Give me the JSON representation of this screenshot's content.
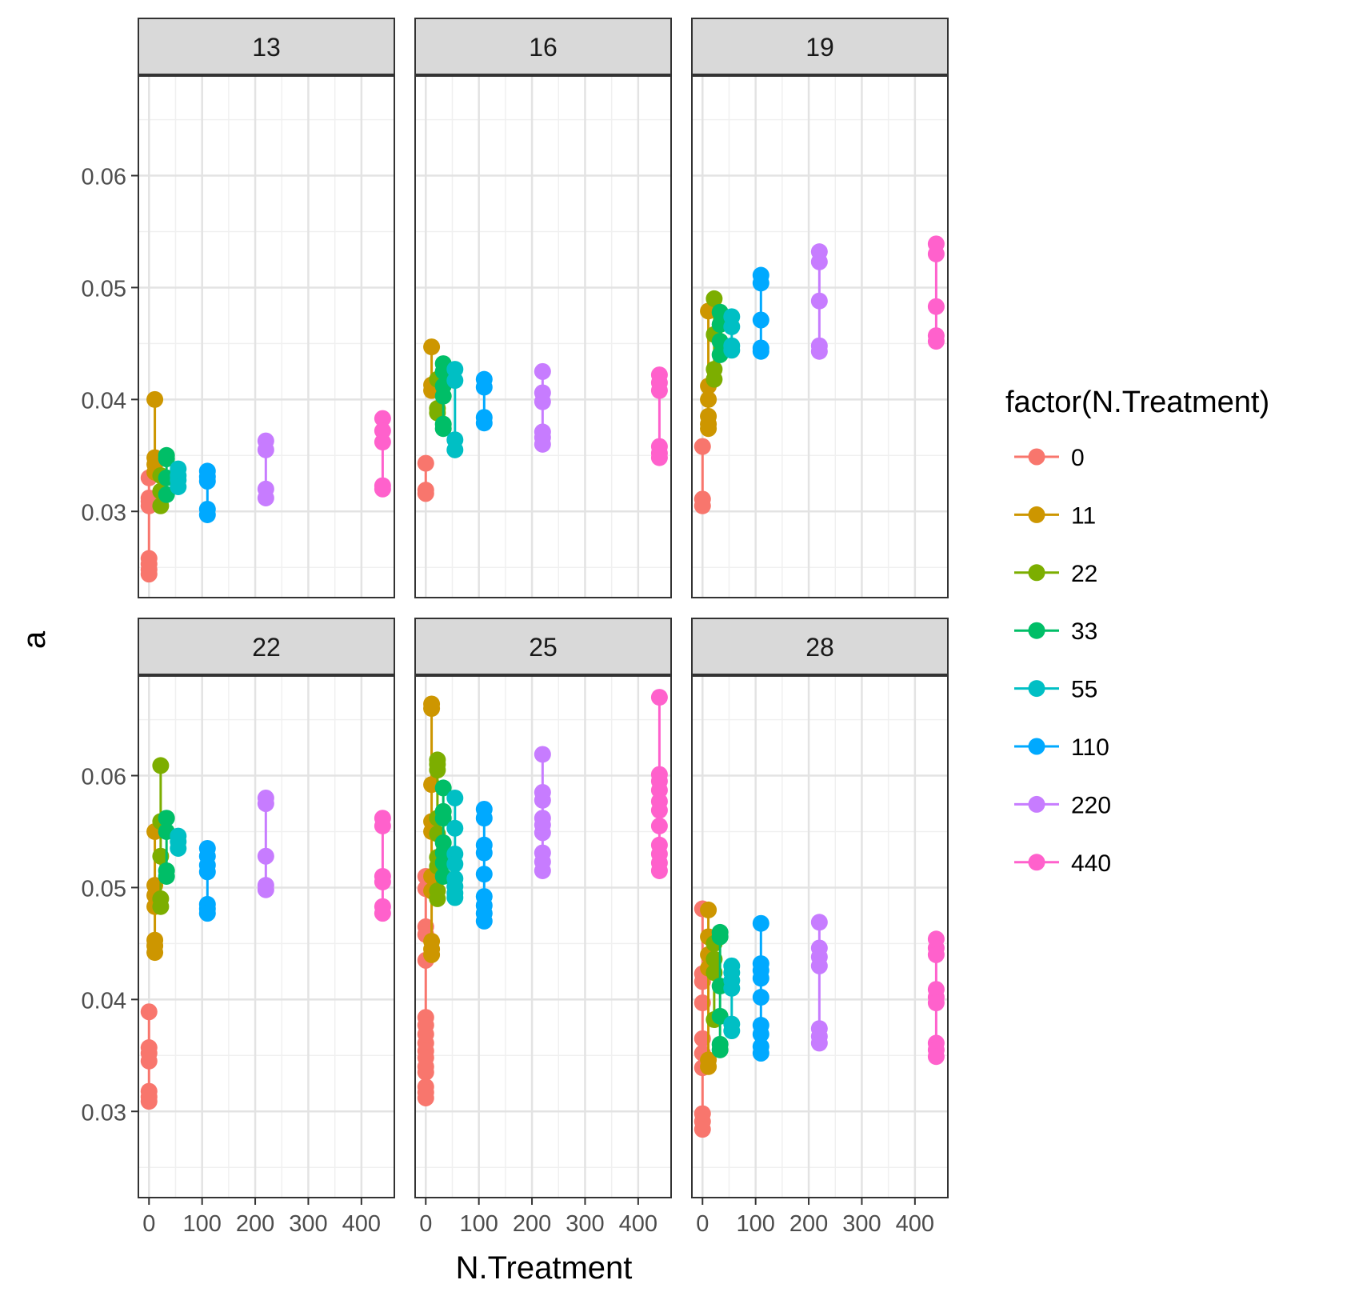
{
  "chart_data": {
    "type": "scatter",
    "xlabel": "N.Treatment",
    "ylabel": "a",
    "xlim": [
      -20,
      462
    ],
    "ylim": [
      0.0223,
      0.0689
    ],
    "x_ticks": [
      0,
      100,
      200,
      300,
      400
    ],
    "y_ticks": [
      0.03,
      0.04,
      0.05,
      0.06
    ],
    "y_tick_labels": [
      "0.03",
      "0.04",
      "0.05",
      "0.06"
    ],
    "grid": true,
    "legend": {
      "title": "factor(N.Treatment)",
      "position": "right",
      "entries": [
        "0",
        "11",
        "22",
        "33",
        "55",
        "110",
        "220",
        "440"
      ]
    },
    "series_colors": {
      "0": "#F8766D",
      "11": "#CD9600",
      "22": "#7CAE00",
      "33": "#00BE67",
      "55": "#00BFC4",
      "110": "#00A9FF",
      "220": "#C77CFF",
      "440": "#FF61CC"
    },
    "panels": [
      {
        "label": "13",
        "series": [
          {
            "name": "0",
            "x": 0,
            "values": [
              0.033,
              0.0312,
              0.0309,
              0.0305,
              0.0258,
              0.0253,
              0.0248,
              0.0244
            ]
          },
          {
            "name": "11",
            "x": 11,
            "values": [
              0.04,
              0.0348,
              0.0342,
              0.0335
            ]
          },
          {
            "name": "22",
            "x": 22,
            "values": [
              0.0332,
              0.0318,
              0.0305
            ]
          },
          {
            "name": "33",
            "x": 33,
            "values": [
              0.035,
              0.0347,
              0.033,
              0.0315
            ]
          },
          {
            "name": "55",
            "x": 55,
            "values": [
              0.0338,
              0.0332,
              0.0328,
              0.0322
            ]
          },
          {
            "name": "110",
            "x": 110,
            "values": [
              0.0336,
              0.0331,
              0.0327,
              0.0302,
              0.0297
            ]
          },
          {
            "name": "220",
            "x": 220,
            "values": [
              0.0363,
              0.0355,
              0.032,
              0.0312
            ]
          },
          {
            "name": "440",
            "x": 440,
            "values": [
              0.0383,
              0.0372,
              0.0362,
              0.0323,
              0.032
            ]
          }
        ]
      },
      {
        "label": "16",
        "series": [
          {
            "name": "0",
            "x": 0,
            "values": [
              0.0343,
              0.0319,
              0.0316
            ]
          },
          {
            "name": "11",
            "x": 11,
            "values": [
              0.0447,
              0.0413,
              0.0408
            ]
          },
          {
            "name": "22",
            "x": 22,
            "values": [
              0.0418,
              0.0392,
              0.0388
            ]
          },
          {
            "name": "33",
            "x": 33,
            "values": [
              0.0432,
              0.0425,
              0.0412,
              0.0403,
              0.0378,
              0.0374
            ]
          },
          {
            "name": "55",
            "x": 55,
            "values": [
              0.0427,
              0.0417,
              0.0364,
              0.0355
            ]
          },
          {
            "name": "110",
            "x": 110,
            "values": [
              0.0418,
              0.0411,
              0.0384,
              0.0379
            ]
          },
          {
            "name": "220",
            "x": 220,
            "values": [
              0.0425,
              0.0406,
              0.0398,
              0.0371,
              0.0366,
              0.036
            ]
          },
          {
            "name": "440",
            "x": 440,
            "values": [
              0.0422,
              0.0415,
              0.0408,
              0.0358,
              0.0352,
              0.0348
            ]
          }
        ]
      },
      {
        "label": "19",
        "series": [
          {
            "name": "0",
            "x": 0,
            "values": [
              0.0358,
              0.0311,
              0.0305
            ]
          },
          {
            "name": "11",
            "x": 11,
            "values": [
              0.0479,
              0.0412,
              0.04,
              0.0385,
              0.0378,
              0.0374
            ]
          },
          {
            "name": "22",
            "x": 22,
            "values": [
              0.049,
              0.0458,
              0.0427,
              0.0418
            ]
          },
          {
            "name": "33",
            "x": 33,
            "values": [
              0.0478,
              0.0467,
              0.0452,
              0.044
            ]
          },
          {
            "name": "55",
            "x": 55,
            "values": [
              0.0474,
              0.0465,
              0.0448,
              0.0444
            ]
          },
          {
            "name": "110",
            "x": 110,
            "values": [
              0.0511,
              0.0504,
              0.0471,
              0.0446,
              0.0443
            ]
          },
          {
            "name": "220",
            "x": 220,
            "values": [
              0.0532,
              0.0523,
              0.0488,
              0.0448,
              0.0443
            ]
          },
          {
            "name": "440",
            "x": 440,
            "values": [
              0.0539,
              0.053,
              0.0483,
              0.0457,
              0.0452
            ]
          }
        ]
      },
      {
        "label": "22",
        "series": [
          {
            "name": "0",
            "x": 0,
            "values": [
              0.0389,
              0.0357,
              0.0352,
              0.0345,
              0.0318,
              0.0313,
              0.0309
            ]
          },
          {
            "name": "11",
            "x": 11,
            "values": [
              0.055,
              0.0502,
              0.0493,
              0.0483,
              0.0453,
              0.0448,
              0.0442
            ]
          },
          {
            "name": "22",
            "x": 22,
            "values": [
              0.0609,
              0.0559,
              0.0528,
              0.049,
              0.0483
            ]
          },
          {
            "name": "33",
            "x": 33,
            "values": [
              0.0562,
              0.055,
              0.0515,
              0.051
            ]
          },
          {
            "name": "55",
            "x": 55,
            "values": [
              0.0546,
              0.0541,
              0.0535
            ]
          },
          {
            "name": "110",
            "x": 110,
            "values": [
              0.0535,
              0.0528,
              0.052,
              0.0514,
              0.0485,
              0.0481,
              0.0477
            ]
          },
          {
            "name": "220",
            "x": 220,
            "values": [
              0.058,
              0.0575,
              0.0528,
              0.0502,
              0.0498
            ]
          },
          {
            "name": "440",
            "x": 440,
            "values": [
              0.0562,
              0.0555,
              0.051,
              0.0505,
              0.0483,
              0.0477
            ]
          }
        ]
      },
      {
        "label": "25",
        "series": [
          {
            "name": "0",
            "x": 0,
            "values": [
              0.051,
              0.0499,
              0.0465,
              0.0458,
              0.0435,
              0.0384,
              0.0377,
              0.0369,
              0.0361,
              0.0354,
              0.0348,
              0.034,
              0.0335,
              0.0322,
              0.0317,
              0.0312
            ]
          },
          {
            "name": "11",
            "x": 11,
            "values": [
              0.0664,
              0.066,
              0.0592,
              0.0559,
              0.055,
              0.051,
              0.0497,
              0.0452,
              0.0445,
              0.044
            ]
          },
          {
            "name": "22",
            "x": 22,
            "values": [
              0.0614,
              0.061,
              0.0605,
              0.0562,
              0.0548,
              0.0527,
              0.0519,
              0.0497,
              0.049
            ]
          },
          {
            "name": "33",
            "x": 33,
            "values": [
              0.0589,
              0.0568,
              0.0562,
              0.054,
              0.0531,
              0.0522,
              0.051
            ]
          },
          {
            "name": "55",
            "x": 55,
            "values": [
              0.058,
              0.0553,
              0.053,
              0.0521,
              0.0508,
              0.0501,
              0.0495,
              0.0491
            ]
          },
          {
            "name": "110",
            "x": 110,
            "values": [
              0.057,
              0.0562,
              0.0538,
              0.0531,
              0.0512,
              0.0492,
              0.0484,
              0.0477,
              0.047
            ]
          },
          {
            "name": "220",
            "x": 220,
            "values": [
              0.0619,
              0.0585,
              0.0578,
              0.0562,
              0.0556,
              0.0549,
              0.0531,
              0.0523,
              0.0515
            ]
          },
          {
            "name": "440",
            "x": 440,
            "values": [
              0.067,
              0.0601,
              0.0595,
              0.0587,
              0.0577,
              0.0569,
              0.0555,
              0.0538,
              0.053,
              0.0522,
              0.0515
            ]
          }
        ]
      },
      {
        "label": "28",
        "series": [
          {
            "name": "0",
            "x": 0,
            "values": [
              0.0481,
              0.0423,
              0.0416,
              0.0397,
              0.0365,
              0.0352,
              0.0339,
              0.0298,
              0.0291,
              0.0284
            ]
          },
          {
            "name": "11",
            "x": 11,
            "values": [
              0.048,
              0.0456,
              0.044,
              0.0428,
              0.0346,
              0.034
            ]
          },
          {
            "name": "22",
            "x": 22,
            "values": [
              0.045,
              0.0436,
              0.0424,
              0.0382
            ]
          },
          {
            "name": "33",
            "x": 33,
            "values": [
              0.046,
              0.0456,
              0.0412,
              0.0385,
              0.036,
              0.0355
            ]
          },
          {
            "name": "55",
            "x": 55,
            "values": [
              0.043,
              0.0424,
              0.0417,
              0.041,
              0.0378,
              0.0372
            ]
          },
          {
            "name": "110",
            "x": 110,
            "values": [
              0.0468,
              0.0432,
              0.0426,
              0.0419,
              0.0402,
              0.0377,
              0.0369,
              0.0358,
              0.0352
            ]
          },
          {
            "name": "220",
            "x": 220,
            "values": [
              0.0469,
              0.0446,
              0.0438,
              0.043,
              0.0374,
              0.0367,
              0.0361
            ]
          },
          {
            "name": "440",
            "x": 440,
            "values": [
              0.0454,
              0.0446,
              0.044,
              0.0409,
              0.0402,
              0.0397,
              0.0361,
              0.0355,
              0.0349
            ]
          }
        ]
      }
    ]
  }
}
